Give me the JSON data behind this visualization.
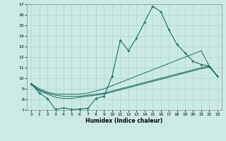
{
  "xlabel": "Humidex (Indice chaleur)",
  "bg_color": "#cceae4",
  "grid_color": "#aad4cc",
  "line_color": "#1a6b60",
  "xlim": [
    -0.5,
    23.5
  ],
  "ylim": [
    7,
    17
  ],
  "yticks": [
    7,
    8,
    9,
    10,
    11,
    12,
    13,
    14,
    15,
    16,
    17
  ],
  "xticks": [
    0,
    1,
    2,
    3,
    4,
    5,
    6,
    7,
    8,
    9,
    10,
    11,
    12,
    13,
    14,
    15,
    16,
    17,
    18,
    19,
    20,
    21,
    22,
    23
  ],
  "line_spiky": {
    "x": [
      0,
      1,
      2,
      3,
      4,
      5,
      6,
      7,
      8,
      9,
      10,
      11,
      12,
      13,
      14,
      15,
      16,
      17,
      18,
      19,
      20,
      21,
      22,
      23
    ],
    "y": [
      9.5,
      8.6,
      8.1,
      7.05,
      7.2,
      7.05,
      7.1,
      7.15,
      8.1,
      8.3,
      10.2,
      13.6,
      12.6,
      13.8,
      15.3,
      16.8,
      16.3,
      14.6,
      13.2,
      12.4,
      11.6,
      11.3,
      11.15,
      10.2
    ]
  },
  "line_smooth1": {
    "x": [
      0,
      1,
      2,
      3,
      4,
      5,
      6,
      7,
      8,
      9,
      10,
      11,
      12,
      13,
      14,
      15,
      16,
      17,
      18,
      19,
      20,
      21,
      22,
      23
    ],
    "y": [
      9.4,
      8.9,
      8.6,
      8.4,
      8.3,
      8.3,
      8.3,
      8.4,
      8.5,
      8.6,
      8.8,
      9.0,
      9.2,
      9.4,
      9.6,
      9.8,
      10.0,
      10.2,
      10.4,
      10.6,
      10.8,
      11.0,
      11.15,
      10.2
    ]
  },
  "line_smooth2": {
    "x": [
      0,
      1,
      2,
      3,
      4,
      5,
      6,
      7,
      8,
      9,
      10,
      11,
      12,
      13,
      14,
      15,
      16,
      17,
      18,
      19,
      20,
      21,
      22,
      23
    ],
    "y": [
      9.4,
      8.8,
      8.5,
      8.2,
      8.1,
      8.1,
      8.2,
      8.3,
      8.4,
      8.5,
      8.7,
      8.9,
      9.1,
      9.3,
      9.5,
      9.7,
      9.9,
      10.1,
      10.3,
      10.5,
      10.7,
      10.9,
      11.05,
      10.2
    ]
  },
  "line_upper": {
    "x": [
      0,
      1,
      2,
      3,
      4,
      5,
      6,
      7,
      8,
      9,
      10,
      11,
      12,
      13,
      14,
      15,
      16,
      17,
      18,
      19,
      20,
      21,
      22,
      23
    ],
    "y": [
      9.5,
      9.0,
      8.7,
      8.5,
      8.5,
      8.5,
      8.5,
      8.6,
      8.8,
      9.0,
      9.3,
      9.6,
      9.9,
      10.2,
      10.5,
      10.8,
      11.1,
      11.4,
      11.7,
      12.0,
      12.3,
      12.6,
      11.15,
      10.2
    ]
  }
}
